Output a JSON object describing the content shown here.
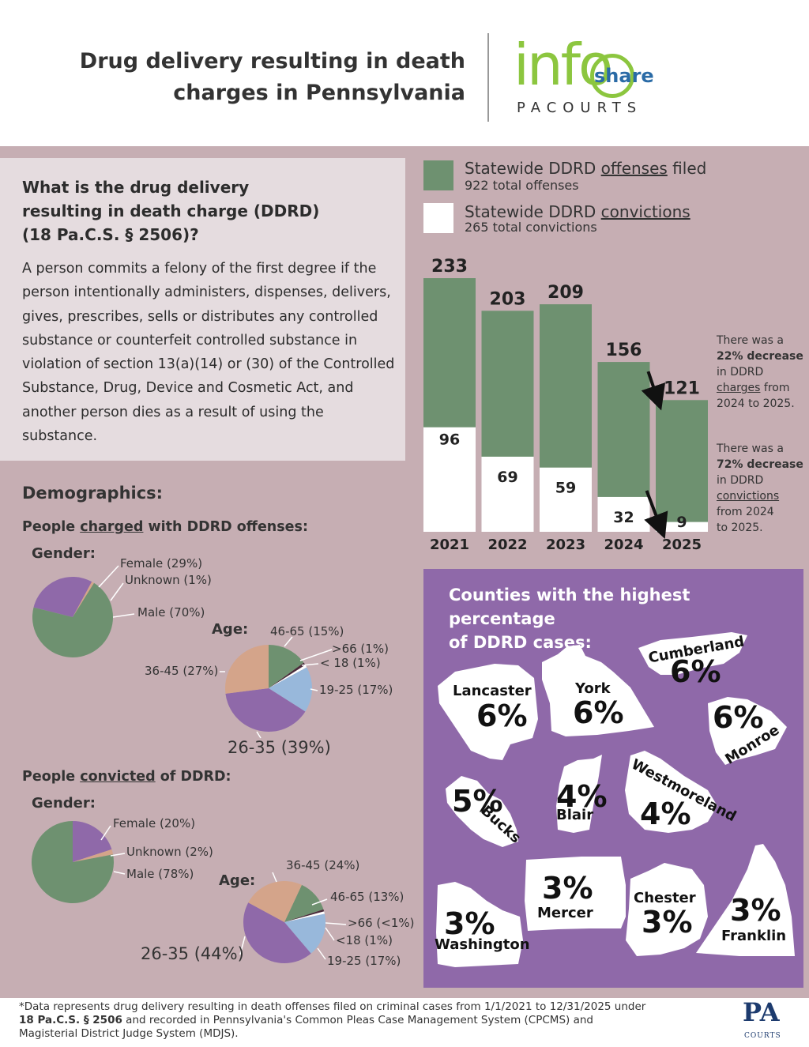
{
  "header": {
    "title_line1": "Drug delivery resulting in death",
    "title_line2": "charges in Pennsylvania",
    "logo_info": "info",
    "logo_share": "share",
    "logo_sub": "PACOURTS"
  },
  "definition": {
    "question_line1": "What is the drug delivery",
    "question_line2": "resulting in death charge (DDRD)",
    "question_line3": "(18 Pa.C.S. § 2506)?",
    "text": "A person commits a felony of the first degree if the person intentionally administers, dispenses, delivers, gives, prescribes, sells or distributes any controlled substance or counterfeit controlled substance in violation of section 13(a)(14) or (30) of the Controlled Substance, Drug, Device and Cosmetic Act, and another person dies as a result of using the substance."
  },
  "legend": {
    "offenses_prefix": "Statewide DDRD ",
    "offenses_word": "offenses",
    "offenses_suffix": " filed",
    "offenses_total": "922 total offenses",
    "convictions_prefix": "Statewide DDRD ",
    "convictions_word": "convictions",
    "convictions_total": "265 total convictions"
  },
  "colors": {
    "green": "#6e9170",
    "white": "#ffffff",
    "mauve": "#c6aeb3",
    "purple": "#8f69a9",
    "pie_purple": "#8f69a9",
    "pie_tan": "#d4a48a",
    "pie_blue": "#98b8db",
    "pie_dark": "#4a2a3a"
  },
  "chart_data": {
    "type": "bar",
    "categories": [
      "2021",
      "2022",
      "2023",
      "2024",
      "2025"
    ],
    "series": [
      {
        "name": "Statewide DDRD offenses filed",
        "values": [
          233,
          203,
          209,
          156,
          121
        ]
      },
      {
        "name": "Statewide DDRD convictions",
        "values": [
          96,
          69,
          59,
          32,
          9
        ]
      }
    ],
    "ylim": [
      0,
      233
    ]
  },
  "notes": {
    "charges_1": "There was a",
    "charges_2": "22% decrease",
    "charges_3": "in DDRD",
    "charges_4": "charges",
    "charges_5": " from",
    "charges_6": "2024 to 2025.",
    "conv_1": "There was a",
    "conv_2": "72% decrease",
    "conv_3": "in DDRD",
    "conv_4": "convictions",
    "conv_5": "from 2024",
    "conv_6": "to 2025."
  },
  "demographics": {
    "heading": "Demographics:",
    "charged_prefix": "People ",
    "charged_word": "charged",
    "charged_suffix": " with DDRD offenses:",
    "convicted_prefix": "People ",
    "convicted_word": "convicted",
    "convicted_suffix": " of DDRD:",
    "gender_label": "Gender:",
    "age_label": "Age:",
    "charged_gender": [
      {
        "label": "Female (29%)",
        "value": 29,
        "color": "#8f69a9"
      },
      {
        "label": "Unknown (1%)",
        "value": 1,
        "color": "#d4a48a"
      },
      {
        "label": "Male (70%)",
        "value": 70,
        "color": "#6e9170"
      }
    ],
    "charged_age": [
      {
        "label": "46-65 (15%)",
        "value": 15,
        "color": "#6e9170"
      },
      {
        "label": ">66 (1%)",
        "value": 1,
        "color": "#4a2a3a"
      },
      {
        "label": "< 18 (1%)",
        "value": 1,
        "color": "#ffffff"
      },
      {
        "label": "19-25 (17%)",
        "value": 17,
        "color": "#98b8db"
      },
      {
        "label": "26-35 (39%)",
        "value": 39,
        "color": "#8f69a9"
      },
      {
        "label": "36-45 (27%)",
        "value": 27,
        "color": "#d4a48a"
      }
    ],
    "convicted_gender": [
      {
        "label": "Female (20%)",
        "value": 20,
        "color": "#8f69a9"
      },
      {
        "label": "Unknown (2%)",
        "value": 2,
        "color": "#d4a48a"
      },
      {
        "label": "Male (78%)",
        "value": 78,
        "color": "#6e9170"
      }
    ],
    "convicted_age": [
      {
        "label": "46-65 (13%)",
        "value": 13,
        "color": "#6e9170"
      },
      {
        "label": ">66 (<1%)",
        "value": 0.8,
        "color": "#4a2a3a"
      },
      {
        "label": "<18 (1%)",
        "value": 1,
        "color": "#ffffff"
      },
      {
        "label": "19-25 (17%)",
        "value": 17,
        "color": "#98b8db"
      },
      {
        "label": "26-35 (44%)",
        "value": 44,
        "color": "#8f69a9"
      },
      {
        "label": "36-45 (24%)",
        "value": 24,
        "color": "#d4a48a"
      }
    ]
  },
  "counties": {
    "title_line1": "Counties with the highest percentage",
    "title_line2": "of DDRD cases:",
    "items": [
      {
        "name": "Lancaster",
        "pct": "6%"
      },
      {
        "name": "York",
        "pct": "6%"
      },
      {
        "name": "Cumberland",
        "pct": "6%"
      },
      {
        "name": "Monroe",
        "pct": "6%"
      },
      {
        "name": "Bucks",
        "pct": "5%"
      },
      {
        "name": "Blair",
        "pct": "4%"
      },
      {
        "name": "Westmoreland",
        "pct": "4%"
      },
      {
        "name": "Mercer",
        "pct": "3%"
      },
      {
        "name": "Chester",
        "pct": "3%"
      },
      {
        "name": "Franklin",
        "pct": "3%"
      },
      {
        "name": "Washington",
        "pct": "3%"
      }
    ]
  },
  "footer": {
    "line1": "*Data represents drug delivery resulting in death offenses filed on criminal cases from 1/1/2021 to 12/31/2025 under",
    "line2_bold": "18 Pa.C.S. § 2506",
    "line2_rest": " and recorded in Pennsylvania's Common Pleas Case Management System (CPCMS) and",
    "line3": "Magisterial District Judge System (MDJS).",
    "pa_logo": "PA",
    "pa_courts": "COURTS"
  }
}
